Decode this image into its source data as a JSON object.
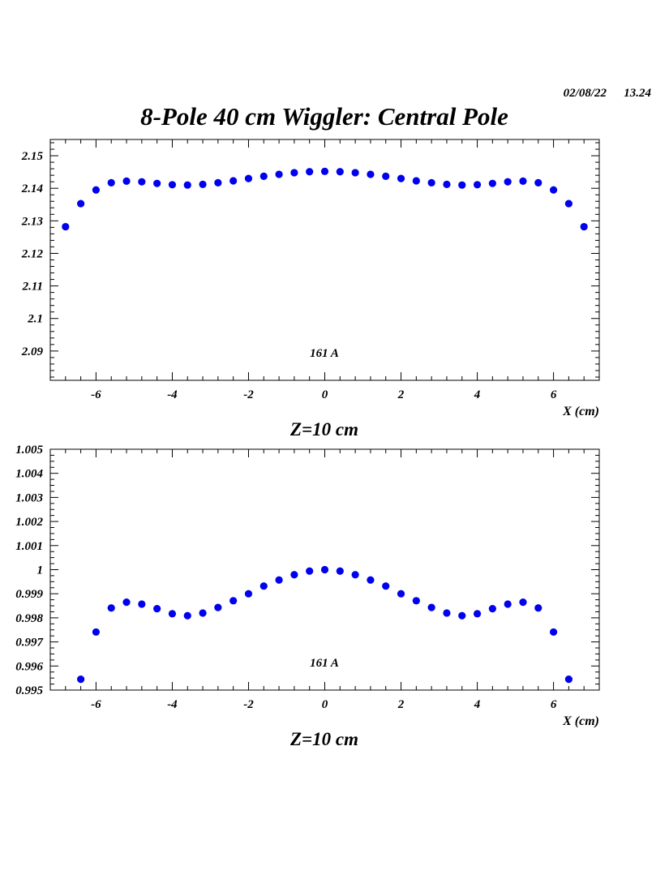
{
  "header": {
    "date": "02/08/22",
    "time": "13.24",
    "title": "8-Pole 40 cm Wiggler: Central Pole"
  },
  "colors": {
    "marker": "#0000ee",
    "axis": "#000000",
    "background": "#ffffff"
  },
  "chart_data": [
    {
      "type": "scatter",
      "xlabel": "X (cm)",
      "ylabel": "",
      "caption": "Z=10 cm",
      "annotation": "161 A",
      "xlim": [
        -7.2,
        7.2
      ],
      "ylim": [
        2.081,
        2.155
      ],
      "xticks": [
        "-6",
        "-4",
        "-2",
        "0",
        "2",
        "4",
        "6"
      ],
      "yticks": [
        "2.09",
        "2.1",
        "2.11",
        "2.12",
        "2.13",
        "2.14",
        "2.15"
      ],
      "grid": false,
      "series": [
        {
          "x": [
            -6.8,
            -6.4,
            -6.0,
            -5.6,
            -5.2,
            -4.8,
            -4.4,
            -4.0,
            -3.6,
            -3.2,
            -2.8,
            -2.4,
            -2.0,
            -1.6,
            -1.2,
            -0.8,
            -0.4,
            0.0,
            0.4,
            0.8,
            1.2,
            1.6,
            2.0,
            2.4,
            2.8,
            3.2,
            3.6,
            4.0,
            4.4,
            4.8,
            5.2,
            5.6,
            6.0,
            6.4,
            6.8
          ],
          "y": [
            2.1282,
            2.1353,
            2.1395,
            2.1417,
            2.1422,
            2.142,
            2.1415,
            2.1411,
            2.141,
            2.1412,
            2.1417,
            2.1423,
            2.143,
            2.1437,
            2.1443,
            2.1448,
            2.1451,
            2.1452,
            2.1451,
            2.1448,
            2.1443,
            2.1437,
            2.143,
            2.1423,
            2.1417,
            2.1412,
            2.141,
            2.1411,
            2.1415,
            2.142,
            2.1422,
            2.1417,
            2.1395,
            2.1353,
            2.1282
          ]
        }
      ]
    },
    {
      "type": "scatter",
      "xlabel": "X (cm)",
      "ylabel": "",
      "caption": "Z=10 cm",
      "annotation": "161 A",
      "xlim": [
        -7.2,
        7.2
      ],
      "ylim": [
        0.995,
        1.005
      ],
      "xticks": [
        "-6",
        "-4",
        "-2",
        "0",
        "2",
        "4",
        "6"
      ],
      "yticks": [
        "0.995",
        "0.996",
        "0.997",
        "0.998",
        "0.999",
        "1",
        "1.001",
        "1.002",
        "1.003",
        "1.004",
        "1.005"
      ],
      "grid": false,
      "series": [
        {
          "x": [
            -6.4,
            -6.0,
            -5.6,
            -5.2,
            -4.8,
            -4.4,
            -4.0,
            -3.6,
            -3.2,
            -2.8,
            -2.4,
            -2.0,
            -1.6,
            -1.2,
            -0.8,
            -0.4,
            0.0,
            0.4,
            0.8,
            1.2,
            1.6,
            2.0,
            2.4,
            2.8,
            3.2,
            3.6,
            4.0,
            4.4,
            4.8,
            5.2,
            5.6,
            6.0,
            6.4
          ],
          "y": [
            0.99545,
            0.99741,
            0.99841,
            0.99865,
            0.99857,
            0.99838,
            0.99817,
            0.99809,
            0.9982,
            0.99843,
            0.99871,
            0.999,
            0.99932,
            0.99957,
            0.99979,
            0.99994,
            1.0,
            0.99994,
            0.99979,
            0.99957,
            0.99932,
            0.999,
            0.99871,
            0.99843,
            0.9982,
            0.99809,
            0.99817,
            0.99838,
            0.99857,
            0.99865,
            0.99841,
            0.99741,
            0.99545
          ]
        }
      ]
    }
  ]
}
